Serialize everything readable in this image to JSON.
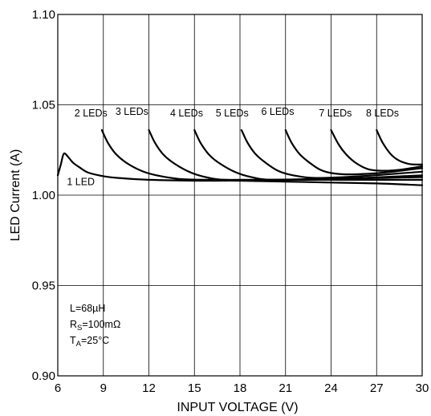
{
  "chart_data": {
    "type": "line",
    "title": "",
    "xlabel": "INPUT VOLTAGE (V)",
    "ylabel": "LED Current (A)",
    "xlim": [
      6,
      30
    ],
    "ylim": [
      0.9,
      1.1
    ],
    "xticks": [
      "6",
      "9",
      "12",
      "15",
      "18",
      "21",
      "24",
      "27",
      "30"
    ],
    "yticks": [
      "0.90",
      "0.95",
      "1.00",
      "1.05",
      "1.10"
    ],
    "grid": true,
    "legend": "none (series labelled inline)",
    "line_color": "#000000",
    "annotations": {
      "inductance": "L=68µH",
      "rs_main": "R",
      "rs_sub": "S",
      "rs_value": "=100mΩ",
      "ta_main": "T",
      "ta_sub": "A",
      "ta_value": "=25°C"
    },
    "series": [
      {
        "name": "1 LED",
        "x": [
          6.0,
          6.2,
          6.4,
          6.7,
          7,
          7.5,
          8,
          9,
          10,
          12,
          15,
          18,
          21,
          24,
          27,
          30
        ],
        "y": [
          1.011,
          1.017,
          1.023,
          1.021,
          1.018,
          1.015,
          1.0125,
          1.0105,
          1.0095,
          1.0085,
          1.008,
          1.008,
          1.0075,
          1.007,
          1.0065,
          1.0055
        ]
      },
      {
        "name": "2 LEDs",
        "x": [
          8.9,
          9.3,
          9.8,
          10.5,
          11.5,
          12.5,
          14,
          16,
          18,
          21,
          24,
          27,
          30
        ],
        "y": [
          1.036,
          1.029,
          1.023,
          1.018,
          1.0135,
          1.011,
          1.009,
          1.0085,
          1.0085,
          1.0085,
          1.0085,
          1.0085,
          1.0085
        ]
      },
      {
        "name": "3 LEDs",
        "x": [
          12.0,
          12.4,
          12.9,
          13.5,
          14.5,
          15.5,
          17,
          20,
          24,
          27,
          30
        ],
        "y": [
          1.036,
          1.029,
          1.023,
          1.0185,
          1.0135,
          1.0105,
          1.0085,
          1.0085,
          1.009,
          1.0095,
          1.01
        ]
      },
      {
        "name": "4 LEDs",
        "x": [
          15.0,
          15.4,
          15.9,
          16.5,
          17.5,
          18.5,
          20,
          23,
          26,
          30
        ],
        "y": [
          1.036,
          1.029,
          1.023,
          1.0185,
          1.0135,
          1.0105,
          1.0085,
          1.009,
          1.0095,
          1.011
        ]
      },
      {
        "name": "5 LEDs",
        "x": [
          18.1,
          18.5,
          19.0,
          19.6,
          20.5,
          21.5,
          23,
          26,
          30
        ],
        "y": [
          1.036,
          1.029,
          1.023,
          1.0185,
          1.0135,
          1.011,
          1.0095,
          1.0105,
          1.013
        ]
      },
      {
        "name": "6 LEDs",
        "x": [
          21.0,
          21.4,
          21.9,
          22.5,
          23.3,
          24.2,
          25.5,
          27.5,
          30
        ],
        "y": [
          1.036,
          1.029,
          1.023,
          1.0185,
          1.014,
          1.012,
          1.0115,
          1.0125,
          1.015
        ]
      },
      {
        "name": "7 LEDs",
        "x": [
          24.0,
          24.5,
          25.0,
          25.6,
          26.4,
          27.3,
          28.5,
          30
        ],
        "y": [
          1.036,
          1.028,
          1.0225,
          1.018,
          1.0145,
          1.0135,
          1.014,
          1.016
        ]
      },
      {
        "name": "8 LEDs",
        "x": [
          27.0,
          27.4,
          27.9,
          28.4,
          29.0,
          29.5,
          30
        ],
        "y": [
          1.036,
          1.029,
          1.023,
          1.0195,
          1.0175,
          1.017,
          1.017
        ]
      }
    ],
    "label_positions_data_units": [
      {
        "series": "1 LED",
        "x": 6.6,
        "y": 1.0055
      },
      {
        "series": "2 LEDs",
        "x": 7.1,
        "y": 1.0435
      },
      {
        "series": "3 LEDs",
        "x": 9.8,
        "y": 1.0445
      },
      {
        "series": "4 LEDs",
        "x": 13.4,
        "y": 1.0435
      },
      {
        "series": "5 LEDs",
        "x": 16.4,
        "y": 1.0435
      },
      {
        "series": "6 LEDs",
        "x": 19.4,
        "y": 1.0445
      },
      {
        "series": "7 LEDs",
        "x": 23.2,
        "y": 1.0435
      },
      {
        "series": "8 LEDs",
        "x": 26.3,
        "y": 1.0435
      }
    ]
  }
}
